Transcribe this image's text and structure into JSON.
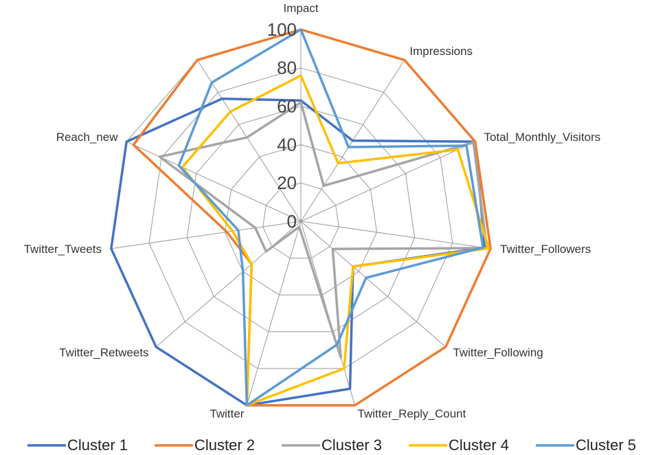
{
  "chart_data": {
    "type": "radar",
    "categories": [
      "Impact",
      "Impressions",
      "Total_Monthly_Visitors",
      "Twitter_Followers",
      "Twitter_Following",
      "Twitter_Reply_Count",
      "Twitter",
      "Twitter_Retweets",
      "Twitter_Tweets",
      "Reach_new",
      null
    ],
    "series": [
      {
        "name": "Cluster 1",
        "color": "#4472c4",
        "values": [
          63,
          50,
          100,
          97,
          36,
          91,
          100,
          100,
          100,
          100,
          76
        ]
      },
      {
        "name": "Cluster 2",
        "color": "#ed7d31",
        "values": [
          100,
          100,
          100,
          100,
          100,
          100,
          100,
          34,
          39,
          96,
          100
        ]
      },
      {
        "name": "Cluster 3",
        "color": "#a5a5a5",
        "values": [
          62,
          22,
          99,
          98,
          22,
          74,
          3,
          24,
          24,
          81,
          52
        ]
      },
      {
        "name": "Cluster 4",
        "color": "#ffc000",
        "values": [
          76,
          36,
          90,
          99,
          36,
          80,
          100,
          34,
          36,
          68,
          68
        ]
      },
      {
        "name": "Cluster 5",
        "color": "#5b9bd5",
        "values": [
          100,
          46,
          95,
          96,
          45,
          67,
          100,
          40,
          33,
          70,
          86
        ]
      }
    ],
    "ylim": [
      0,
      100
    ],
    "yticks": [
      0,
      20,
      40,
      60,
      80,
      100
    ],
    "grid": true,
    "legend": "bottom"
  }
}
